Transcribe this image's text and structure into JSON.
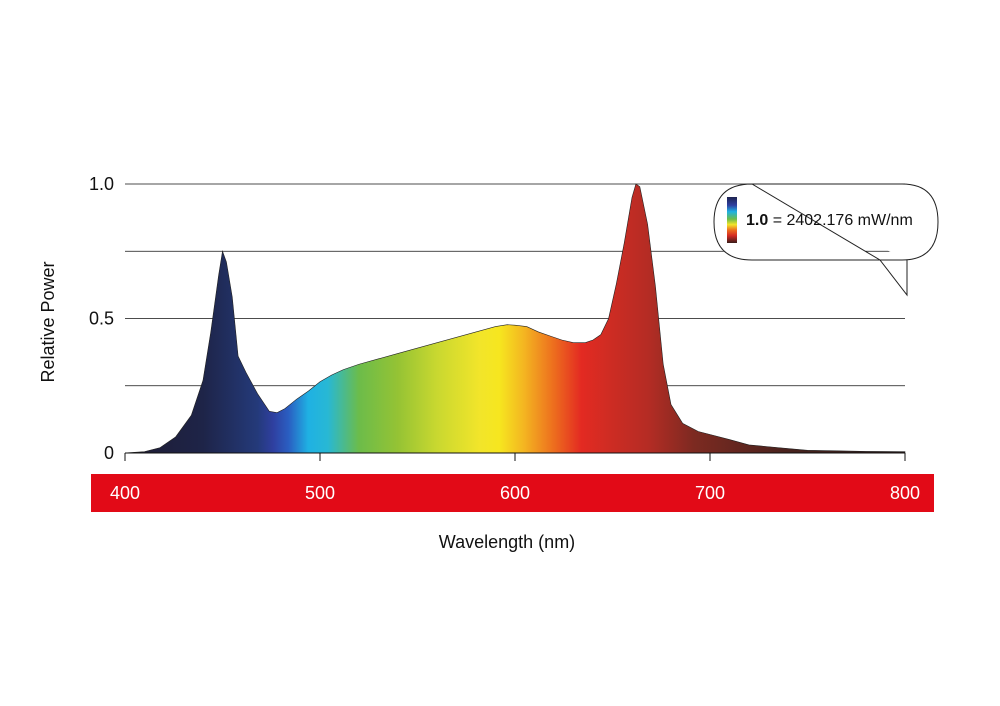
{
  "chart_data": {
    "type": "area",
    "title": "",
    "xlabel": "Wavelength (nm)",
    "ylabel": "Relative Power",
    "xlim": [
      400,
      800
    ],
    "ylim": [
      0,
      1.0
    ],
    "x_ticks": [
      400,
      500,
      600,
      700,
      800
    ],
    "x_tick_labels": [
      "400",
      "500",
      "600",
      "700",
      "800"
    ],
    "y_ticks": [
      0,
      0.5,
      1.0
    ],
    "y_tick_labels": [
      "0",
      "0.5",
      "1.0"
    ],
    "gridlines_y": [
      0.25,
      0.5,
      0.75,
      1.0
    ],
    "fill": "visible-spectrum gradient",
    "series": [
      {
        "x": [
          400,
          410,
          418,
          426,
          434,
          440,
          444,
          448,
          450,
          452,
          455,
          458,
          462,
          468,
          474,
          478,
          482,
          488,
          494,
          500,
          506,
          512,
          520,
          530,
          540,
          550,
          560,
          570,
          580,
          590,
          596,
          600,
          606,
          612,
          618,
          624,
          630,
          636,
          640,
          644,
          648,
          652,
          656,
          660,
          662,
          664,
          668,
          672,
          676,
          680,
          686,
          694,
          702,
          710,
          720,
          735,
          750,
          765,
          780,
          800
        ],
        "y": [
          0.0,
          0.005,
          0.02,
          0.06,
          0.14,
          0.27,
          0.45,
          0.66,
          0.75,
          0.71,
          0.58,
          0.36,
          0.3,
          0.22,
          0.155,
          0.15,
          0.165,
          0.2,
          0.23,
          0.265,
          0.29,
          0.31,
          0.33,
          0.35,
          0.37,
          0.39,
          0.41,
          0.43,
          0.45,
          0.47,
          0.477,
          0.475,
          0.47,
          0.45,
          0.435,
          0.42,
          0.41,
          0.41,
          0.42,
          0.44,
          0.5,
          0.63,
          0.78,
          0.95,
          1.0,
          0.99,
          0.85,
          0.62,
          0.33,
          0.18,
          0.11,
          0.08,
          0.065,
          0.05,
          0.03,
          0.02,
          0.01,
          0.008,
          0.006,
          0.005
        ]
      }
    ],
    "colors": {
      "band": "#e20a17",
      "gridline": "#111111",
      "axis": "#111111",
      "outline": "#222222"
    },
    "callout": {
      "value_label": "1.0",
      "equals_text": " = 2402.176 mW/nm"
    }
  }
}
